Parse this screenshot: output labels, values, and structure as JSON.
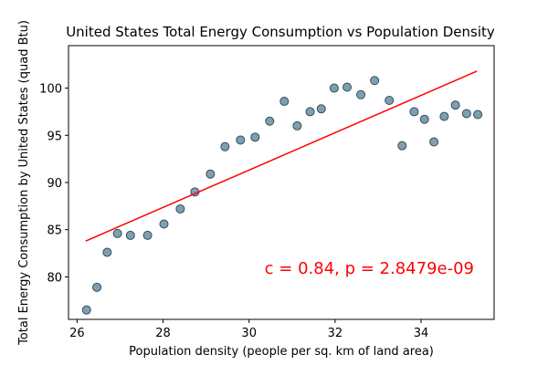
{
  "chart_data": {
    "type": "scatter",
    "title": "United States Total Energy Consumption vs Population Density",
    "xlabel": "Population density (people per sq. km of land area)",
    "ylabel": "Total Energy Consumption by United States (quad Btu)",
    "xlim": [
      25.8,
      35.7
    ],
    "ylim": [
      75.5,
      104.5
    ],
    "xticks": [
      26,
      28,
      30,
      32,
      34
    ],
    "yticks": [
      80,
      85,
      90,
      95,
      100
    ],
    "grid": false,
    "legend": "none",
    "point_color": "#7f9fb0",
    "point_edge_color": "#2f4f5f",
    "line_color": "#ff0000",
    "series": [
      {
        "x": [
          26.22,
          26.46,
          26.7,
          26.94,
          27.24,
          27.64,
          28.02,
          28.4,
          28.74,
          29.1,
          29.44,
          29.8,
          30.14,
          30.48,
          30.82,
          31.12,
          31.42,
          31.68,
          31.98,
          32.28,
          32.6,
          32.92,
          33.26,
          33.56,
          33.84,
          34.08,
          34.3,
          34.54,
          34.8,
          35.06,
          35.32
        ],
        "y": [
          76.5,
          78.9,
          82.6,
          84.6,
          84.4,
          84.4,
          85.6,
          87.2,
          89.0,
          90.9,
          93.8,
          94.5,
          94.8,
          96.5,
          98.6,
          96.0,
          97.5,
          97.8,
          100.0,
          100.1,
          99.3,
          100.8,
          98.7,
          93.9,
          97.5,
          96.7,
          94.3,
          97.0,
          98.2,
          97.3,
          97.2
        ]
      }
    ],
    "fit_line": {
      "x": [
        26.2,
        35.3
      ],
      "y": [
        83.8,
        101.8
      ]
    },
    "annotation": "c = 0.84, p = 2.8479e-09"
  }
}
